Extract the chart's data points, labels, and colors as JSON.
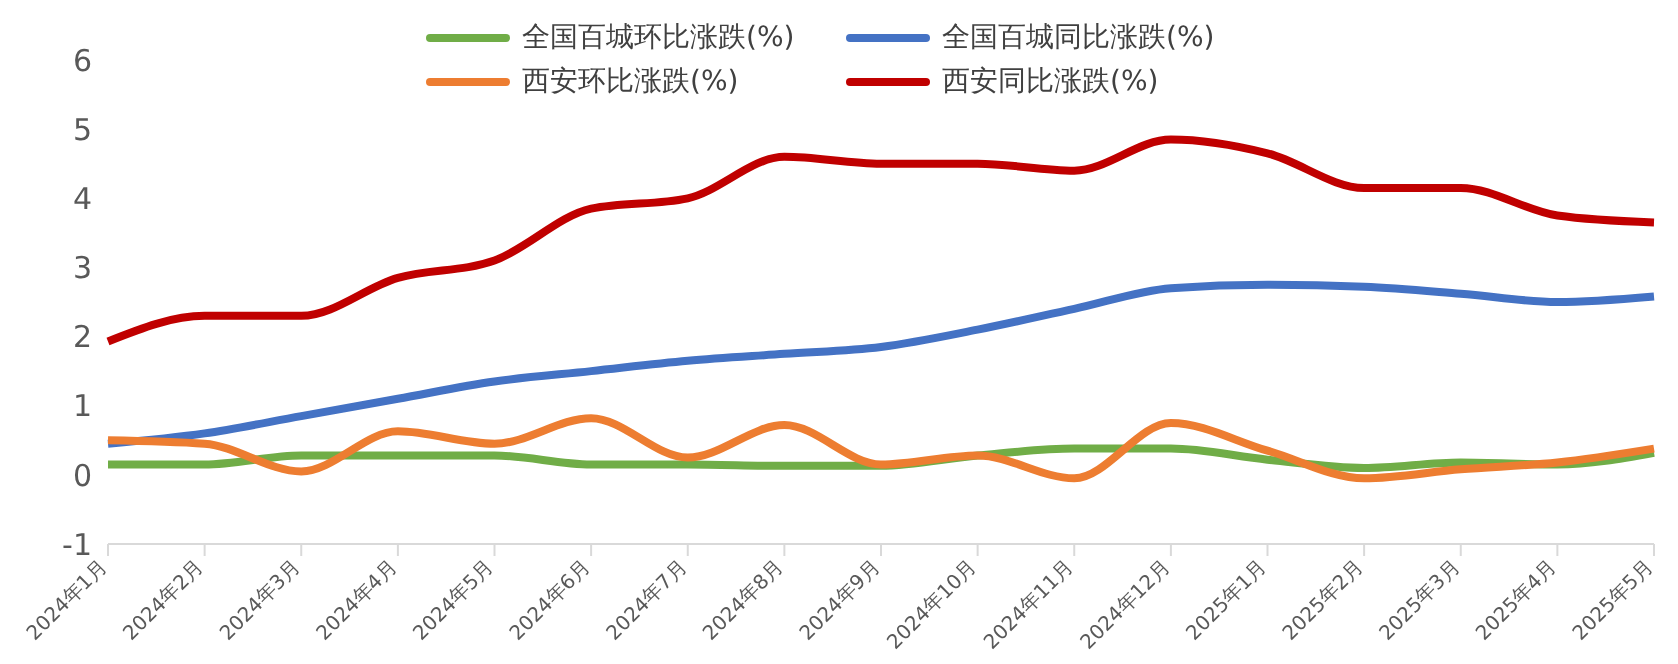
{
  "chart_data": {
    "type": "line",
    "categories": [
      "2024年1月",
      "2024年2月",
      "2024年3月",
      "2024年4月",
      "2024年5月",
      "2024年6月",
      "2024年7月",
      "2024年8月",
      "2024年9月",
      "2024年10月",
      "2024年11月",
      "2024年12月",
      "2025年1月",
      "2025年2月",
      "2025年3月",
      "2025年4月",
      "2025年5月"
    ],
    "series": [
      {
        "name": "全国百城环比涨跌(%)",
        "color": "#70ad47",
        "values": [
          0.15,
          0.15,
          0.28,
          0.28,
          0.28,
          0.15,
          0.15,
          0.13,
          0.13,
          0.28,
          0.38,
          0.38,
          0.22,
          0.1,
          0.18,
          0.15,
          0.32
        ]
      },
      {
        "name": "全国百城同比涨跌(%)",
        "color": "#4472c4",
        "values": [
          0.45,
          0.6,
          0.85,
          1.1,
          1.35,
          1.5,
          1.65,
          1.75,
          1.85,
          2.1,
          2.4,
          2.7,
          2.75,
          2.72,
          2.62,
          2.5,
          2.58
        ]
      },
      {
        "name": "西安环比涨跌(%)",
        "color": "#ed7d31",
        "values": [
          0.5,
          0.45,
          0.05,
          0.63,
          0.45,
          0.82,
          0.25,
          0.72,
          0.15,
          0.28,
          -0.05,
          0.75,
          0.35,
          -0.05,
          0.08,
          0.18,
          0.38
        ]
      },
      {
        "name": "西安同比涨跌(%)",
        "color": "#c00000",
        "values": [
          1.93,
          2.3,
          2.3,
          2.85,
          3.1,
          3.85,
          4.0,
          4.6,
          4.5,
          4.5,
          4.4,
          4.85,
          4.65,
          4.15,
          4.15,
          3.75,
          3.65
        ]
      }
    ],
    "ylim": [
      -1,
      6
    ],
    "yticks": [
      -1,
      0,
      1,
      2,
      3,
      4,
      5,
      6
    ],
    "legend": "top",
    "marker": "none",
    "line_style": "solid"
  }
}
